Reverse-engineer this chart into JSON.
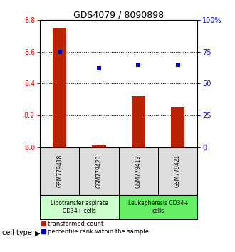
{
  "title": "GDS4079 / 8090898",
  "samples": [
    "GSM779418",
    "GSM779420",
    "GSM779419",
    "GSM779421"
  ],
  "transformed_counts": [
    8.75,
    8.01,
    8.32,
    8.25
  ],
  "percentile_ranks": [
    75,
    62,
    65,
    65
  ],
  "ylim_left": [
    8.0,
    8.8
  ],
  "ylim_right": [
    0,
    100
  ],
  "yticks_left": [
    8.0,
    8.2,
    8.4,
    8.6,
    8.8
  ],
  "yticks_right": [
    0,
    25,
    50,
    75,
    100
  ],
  "ytick_labels_right": [
    "0",
    "25",
    "50",
    "75",
    "100%"
  ],
  "bar_color": "#bb2200",
  "dot_color": "#0000bb",
  "groups": [
    {
      "label": "Lipotransfer aspirate\nCD34+ cells",
      "indices": [
        0,
        1
      ],
      "color": "#ccffcc"
    },
    {
      "label": "Leukapheresis CD34+\ncells",
      "indices": [
        2,
        3
      ],
      "color": "#66ee66"
    }
  ],
  "cell_type_label": "cell type",
  "legend_bar_label": "transformed count",
  "legend_dot_label": "percentile rank within the sample",
  "dotted_lines": [
    8.2,
    8.4,
    8.6
  ],
  "bar_base": 8.0,
  "sample_label_color": "#dddddd",
  "title_fontsize": 9,
  "axis_tick_fontsize": 7,
  "sample_fontsize": 5.5,
  "group_fontsize": 5.5,
  "legend_fontsize": 6
}
